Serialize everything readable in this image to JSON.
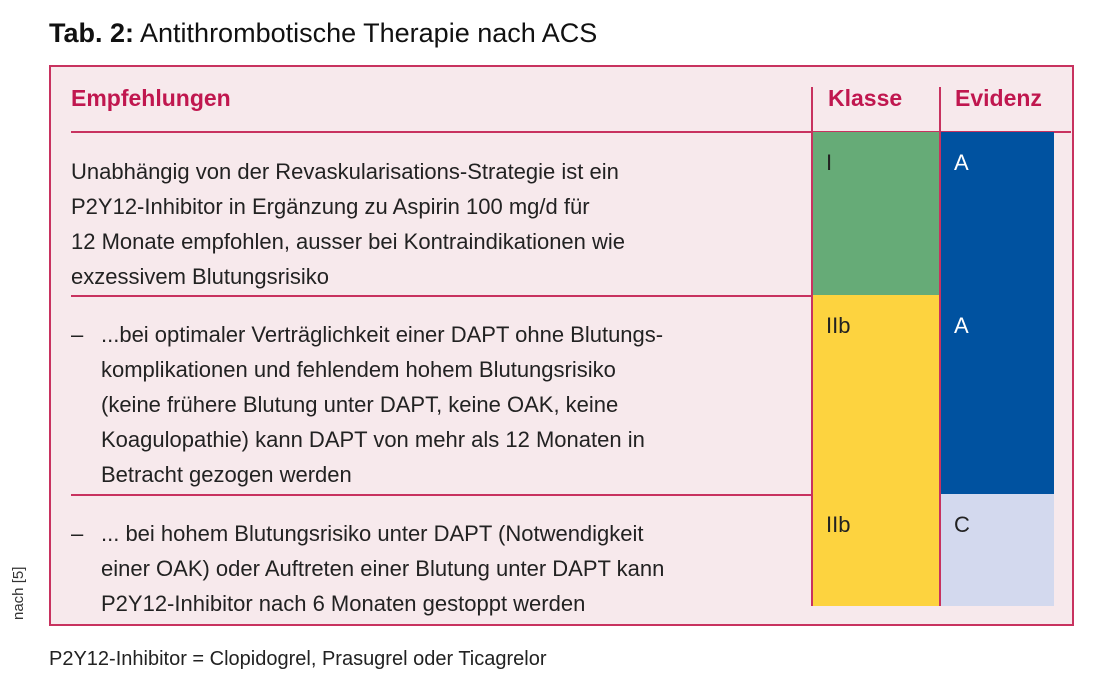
{
  "title": {
    "prefix": "Tab. 2:",
    "text": " Antithrombotische Therapie nach ACS"
  },
  "headers": {
    "empfehlungen": "Empfehlungen",
    "klasse": "Klasse",
    "evidenz": "Evidenz"
  },
  "rows": [
    {
      "dash": "",
      "lines": [
        "Unabhängig von der Revaskularisations-Strategie ist ein",
        "P2Y12-Inhibitor in Ergänzung zu Aspirin 100 mg/d für",
        "12 Monate empfohlen, ausser bei Kontraindikationen wie",
        "exzessivem Blutungsrisiko"
      ],
      "klasse": "I",
      "evidenz": "A"
    },
    {
      "dash": "–",
      "lines": [
        "...bei optimaler Verträglichkeit einer DAPT ohne Blutungs-",
        "komplikationen und fehlendem hohem Blutungsrisiko",
        "(keine frühere Blutung unter DAPT, keine OAK, keine",
        "Koagulopathie) kann DAPT von mehr als 12 Monaten in",
        "Betracht gezogen werden"
      ],
      "klasse": "IIb",
      "evidenz": "A"
    },
    {
      "dash": "–",
      "lines": [
        "... bei hohem Blutungsrisiko unter DAPT (Notwendigkeit",
        "einer OAK) oder Auftreten einer Blutung unter DAPT kann",
        "P2Y12-Inhibitor nach 6 Monaten gestoppt werden"
      ],
      "klasse": "IIb",
      "evidenz": "C"
    }
  ],
  "colors": {
    "accent": "#c0174f",
    "background": "#f7e9ec",
    "klasse_I": "#66ab77",
    "klasse_IIb": "#fdd33f",
    "evidenz_A": "#0052a0",
    "evidenz_C": "#d3d9ee"
  },
  "source": "nach [5]",
  "footnote": "P2Y12-Inhibitor = Clopidogrel, Prasugrel oder Ticagrelor"
}
